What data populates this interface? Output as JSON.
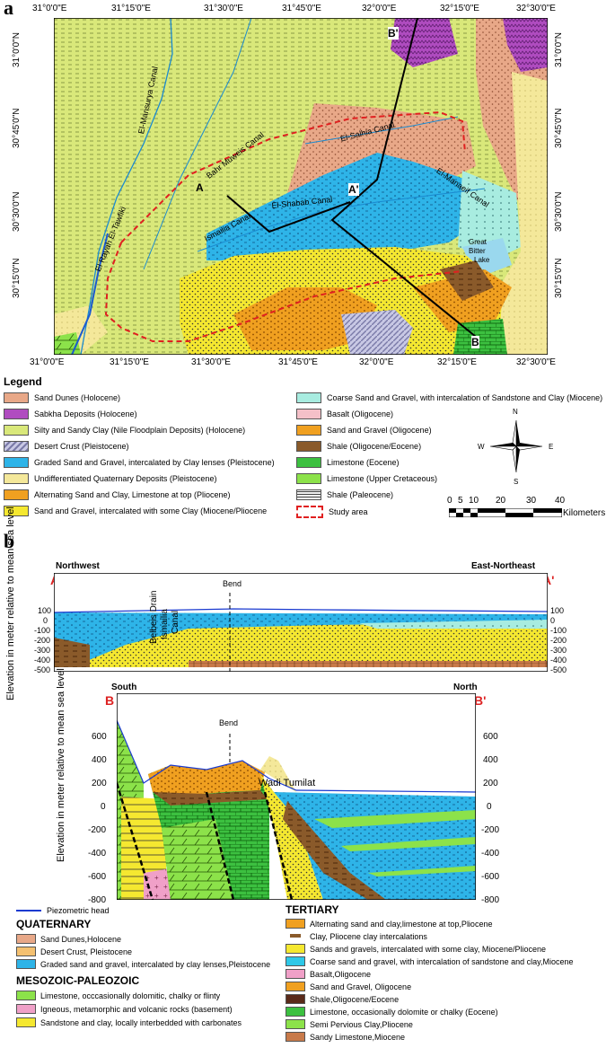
{
  "panel_a": {
    "letter": "a",
    "top_ticks": [
      "31°0'0\"E",
      "31°15'0\"E",
      "31°30'0\"E",
      "31°45'0\"E",
      "32°0'0\"E",
      "32°15'0\"E",
      "32°30'0\"E"
    ],
    "bottom_ticks": [
      "31°0'0\"E",
      "31°15'0\"E",
      "31°30'0\"E",
      "31°45'0\"E",
      "32°0'0\"E",
      "32°15'0\"E",
      "32°30'0\"E"
    ],
    "left_ticks": [
      "31°0'0\"N",
      "30°45'0\"N",
      "30°30'0\"N",
      "30°15'0\"N"
    ],
    "right_ticks": [
      "31°0'0\"N",
      "30°45'0\"N",
      "30°30'0\"N",
      "30°15'0\"N"
    ],
    "map_labels": {
      "mansurya": "El-Mansurya Canal",
      "bahr": "Bahr Muweis Canal",
      "salhia": "El-Salhia Canal",
      "manaeif": "El-Manaeif Canal",
      "shabab": "El-Shabab Canal",
      "ismailia": "Ismailia Canal",
      "rayah": "El Rayah El-Tawfiki",
      "lake1": "Great",
      "lake2": "Bitter",
      "lake3": "Lake",
      "A": "A",
      "A2": "A'",
      "B": "B",
      "B2": "B'"
    },
    "legend_title": "Legend",
    "legend_left": [
      "Sand Dunes (Holocene)",
      "Sabkha Deposits (Holocene)",
      "Silty and Sandy Clay (Nile Floodplain Deposits) (Holocene)",
      "Desert Crust (Pleistocene)",
      "Graded Sand and Gravel, intercalated by Clay lenses (Pleistocene)",
      "Undifferentiated Quaternary Deposits (Pleistocene)",
      "Alternating Sand and Clay, Limestone at top (Pliocene)",
      "Sand and Gravel, intercalated with some Clay (Miocene/Pliocene"
    ],
    "legend_right": [
      "Coarse Sand and Gravel, with intercalation of Sandstone and Clay (Miocene)",
      "Basalt (Oligocene)",
      "Sand and Gravel (Oligocene)",
      "Shale (Oligocene/Eocene)",
      "Limestone (Eocene)",
      "Limestone (Upper Cretaceous)",
      "Shale (Paleocene)",
      "Study area"
    ],
    "compass": {
      "n": "N",
      "s": "S",
      "e": "E",
      "w": "W"
    },
    "scale_ticks": [
      "0",
      "5",
      "10",
      "20",
      "30",
      "40"
    ],
    "scale_unit": "Kilometers"
  },
  "panel_b": {
    "letter": "b",
    "sec1": {
      "left_dir": "Northwest",
      "right_dir": "East-Northeast",
      "left_label": "A",
      "right_label": "A'",
      "bend": "Bend",
      "belbeis": "Belbeis Drain",
      "ismailia": "Ismailia",
      "canal": "Canal",
      "ylabel": "Elevation in meter relative to mean sea level",
      "left_ticks": [
        "100",
        "0",
        "-100",
        "-200",
        "-300",
        "-400",
        "-500"
      ],
      "right_ticks": [
        "100",
        "0",
        "-100",
        "-200",
        "-300",
        "-400",
        "-500"
      ]
    },
    "sec2": {
      "left_dir": "South",
      "right_dir": "North",
      "left_label": "B",
      "right_label": "B'",
      "bend": "Bend",
      "wadi": "Wadi Tumilat",
      "ylabel": "Elevation in meter relative to mean sea level",
      "left_ticks": [
        "600",
        "400",
        "200",
        "0",
        "-200",
        "-400",
        "-600",
        "-800"
      ],
      "right_ticks": [
        "600",
        "400",
        "200",
        "0",
        "-200",
        "-400",
        "-600",
        "-800"
      ]
    },
    "legend": {
      "piezo": "Piezometric head",
      "quaternary": "QUATERNARY",
      "q_items": [
        "Sand Dunes,Holocene",
        "Desert Crust, Pleistocene",
        "Graded sand and gravel, intercalated by clay lenses,Pleistocene"
      ],
      "meso": "MESOZOIC-PALEOZOIC",
      "m_items": [
        "Limestone, occcasionally dolomitic, chalky or flinty",
        "Igneous, metamorphic and volcanic rocks (basement)",
        "Sandstone and clay, locally interbedded with carbonates"
      ],
      "tertiary": "TERTIARY",
      "t_items": [
        "Alternating sand and clay,limestone at top,Pliocene",
        "Clay, Pliocene clay intercalations",
        "Sands and gravels, intercalated with some clay, Miocene/Pliocene",
        "Coarse sand and gravel, with intercalation of sandstone and clay,Miocene",
        "Basalt,Oligocene",
        "Sand and Gravel, Oligocene",
        "Shale,Oligocene/Eocene",
        "Limestone, occasionally dolomite or chalky (Eocene)",
        "Semi Pervious Clay,Pliocene",
        "Sandy Limestone,Miocene"
      ]
    }
  },
  "colors": {
    "floodplain": "#d9e87a",
    "sand_dunes": "#e8a888",
    "sabkha": "#b04cc0",
    "graded": "#2eb4e8",
    "undiff": "#f4e89a",
    "alternating": "#f0a020",
    "sand_gravel_mp": "#f5e830",
    "coarse": "#a8ece0",
    "limestone": "#3cc040",
    "lake": "#9ad8ee",
    "study": "#e02020"
  }
}
